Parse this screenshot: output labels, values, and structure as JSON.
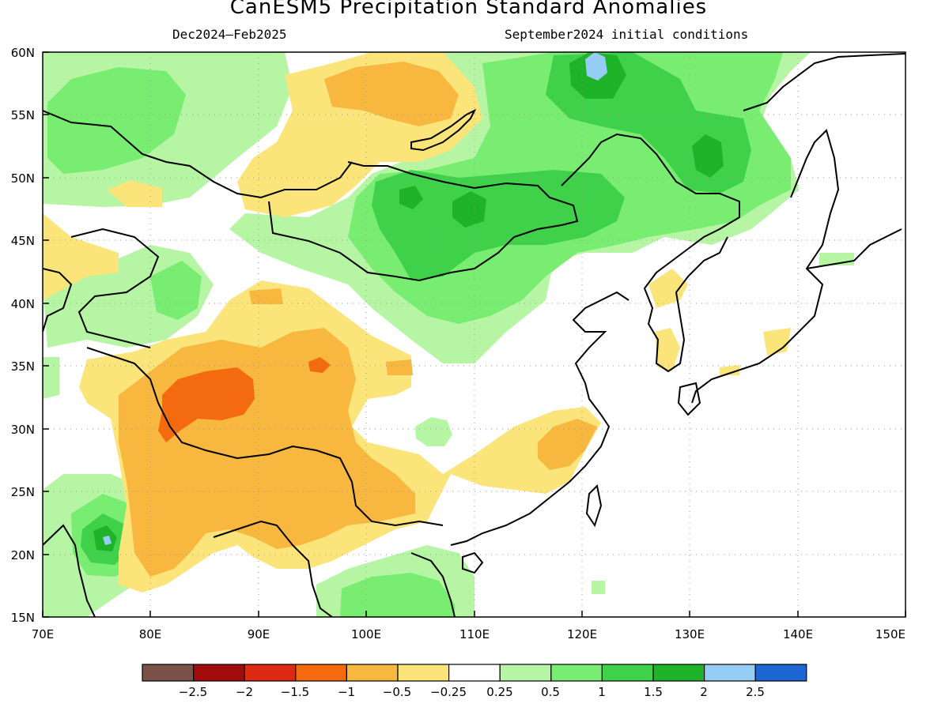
{
  "title": "CanESM5 Precipitation Standard Anomalies",
  "subtitle_left": "Dec2024–Feb2025",
  "subtitle_right": "September2024 initial conditions",
  "axes": {
    "lon_ticks": [
      "70E",
      "80E",
      "90E",
      "100E",
      "110E",
      "120E",
      "130E",
      "140E",
      "150E"
    ],
    "lat_ticks": [
      "15N",
      "20N",
      "25N",
      "30N",
      "35N",
      "40N",
      "45N",
      "50N",
      "55N",
      "60N"
    ],
    "lon_range": [
      70,
      150
    ],
    "lat_range": [
      15,
      60
    ],
    "grid": "dotted"
  },
  "colorbar": {
    "colors": [
      "#7b5249",
      "#a10d0d",
      "#dc2b12",
      "#f46a0e",
      "#f8b73f",
      "#fbe47a",
      "#ffffff",
      "#b6f5a4",
      "#79ec72",
      "#3fd149",
      "#1fb32a",
      "#96cdf4",
      "#1d66d4"
    ],
    "labels": [
      "−2.5",
      "−2",
      "−1.5",
      "−1",
      "−0.5",
      "−0.25",
      "0.25",
      "0.5",
      "1",
      "1.5",
      "2",
      "2.5"
    ]
  },
  "regions": [
    {
      "id": "mongolia-wet",
      "level": "1.5",
      "color": "#3fd149"
    },
    {
      "id": "northeast-wet",
      "level": "1.5",
      "color": "#3fd149"
    },
    {
      "id": "tibet-dry",
      "level": "-1.5",
      "color": "#f46a0e"
    },
    {
      "id": "india-wet",
      "level": "1.5",
      "color": "#3fd149"
    }
  ]
}
